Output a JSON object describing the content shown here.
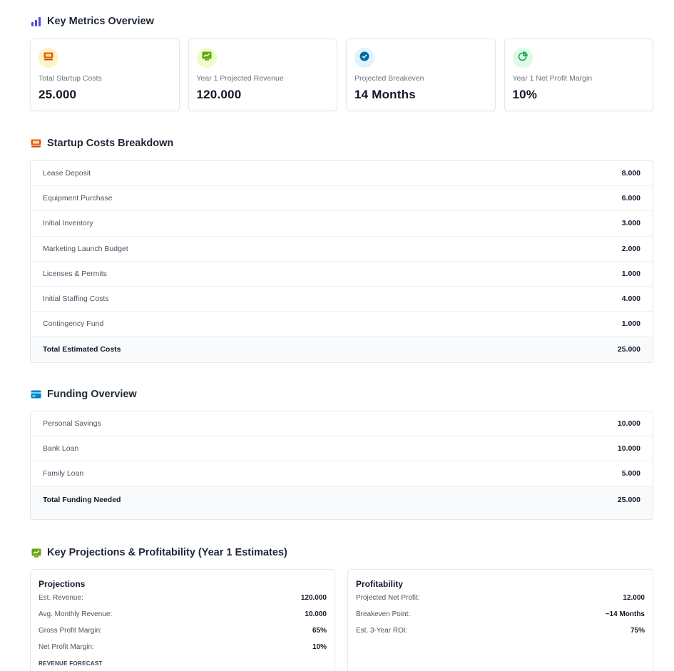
{
  "key_metrics": {
    "title": "Key Metrics Overview",
    "cards": [
      {
        "label": "Total Startup Costs",
        "value": "25.000",
        "icon": "cash-register-icon",
        "color": "#d97706",
        "badge_bg": "#fef3c7"
      },
      {
        "label": "Year 1 Projected Revenue",
        "value": "120.000",
        "icon": "chart-up-icon",
        "color": "#65a30d",
        "badge_bg": "#ecfccb"
      },
      {
        "label": "Projected Breakeven",
        "value": "14 Months",
        "icon": "check-circle-icon",
        "color": "#0369a1",
        "badge_bg": "#e0f2fe"
      },
      {
        "label": "Year 1 Net Profit Margin",
        "value": "10%",
        "icon": "pie-chart-icon",
        "color": "#16a34a",
        "badge_bg": "#dcfce7"
      }
    ]
  },
  "startup_costs": {
    "title": "Startup Costs Breakdown",
    "rows": [
      {
        "label": "Lease Deposit",
        "value": "8.000"
      },
      {
        "label": "Equipment Purchase",
        "value": "6.000"
      },
      {
        "label": "Initial Inventory",
        "value": "3.000"
      },
      {
        "label": "Marketing Launch Budget",
        "value": "2.000"
      },
      {
        "label": "Licenses & Permits",
        "value": "1.000"
      },
      {
        "label": "Initial Staffing Costs",
        "value": "4.000"
      },
      {
        "label": "Contingency Fund",
        "value": "1.000"
      }
    ],
    "total": {
      "label": "Total Estimated Costs",
      "value": "25.000"
    }
  },
  "funding": {
    "title": "Funding Overview",
    "rows": [
      {
        "label": "Personal Savings",
        "value": "10.000"
      },
      {
        "label": "Bank Loan",
        "value": "10.000"
      },
      {
        "label": "Family Loan",
        "value": "5.000"
      }
    ],
    "total": {
      "label": "Total Funding Needed",
      "value": "25.000"
    }
  },
  "projections": {
    "title": "Key Projections & Profitability (Year 1 Estimates)",
    "projections_panel": {
      "heading": "Projections",
      "items": [
        {
          "k": "Est. Revenue:",
          "v": "120.000"
        },
        {
          "k": "Avg. Monthly Revenue:",
          "v": "10.000"
        },
        {
          "k": "Gross Profit Margin:",
          "v": "65%"
        },
        {
          "k": "Net Profit Margin:",
          "v": "10%"
        }
      ],
      "subheading": "REVENUE FORECAST"
    },
    "profitability_panel": {
      "heading": "Profitability",
      "items": [
        {
          "k": "Projected Net Profit:",
          "v": "12.000"
        },
        {
          "k": "Breakeven Point:",
          "v": "~14 Months"
        },
        {
          "k": "Est. 3-Year ROI:",
          "v": "75%"
        }
      ]
    }
  },
  "colors": {
    "accent_indigo": "#4f46e5",
    "accent_orange": "#ea580c",
    "accent_sky": "#0284c7",
    "accent_green": "#65a30d"
  }
}
